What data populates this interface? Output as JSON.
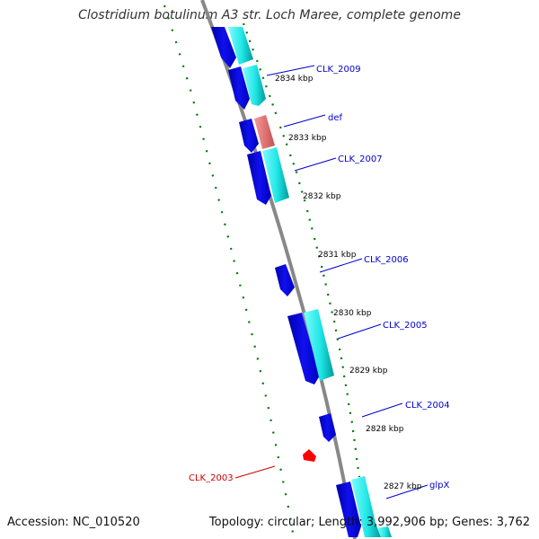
{
  "title": "Clostridium botulinum A3 str. Loch Maree, complete genome",
  "footer": {
    "accession": "Accession: NC_010520",
    "summary": "Topology: circular; Length: 3,992,906 bp; Genes: 3,762"
  },
  "colors": {
    "backbone": "#888888",
    "forward_strand": "#0000ee",
    "reverse_strand": "#00e0e0",
    "rna_gene": "#e07070",
    "highlight": "#ff0000",
    "gene_label": "#0000cc",
    "highlight_label": "#cc0000",
    "tick": "#007700",
    "tick_label": "#000000"
  },
  "diagram": {
    "kbp_ticks": [
      "2834 kbp",
      "2833 kbp",
      "2832 kbp",
      "2831 kbp",
      "2830 kbp",
      "2829 kbp",
      "2828 kbp",
      "2827 kbp"
    ],
    "gene_labels": [
      {
        "text": "CLK_2009",
        "color": "gene_label"
      },
      {
        "text": "def",
        "color": "gene_label"
      },
      {
        "text": "CLK_2007",
        "color": "gene_label"
      },
      {
        "text": "CLK_2006",
        "color": "gene_label"
      },
      {
        "text": "CLK_2005",
        "color": "gene_label"
      },
      {
        "text": "CLK_2004",
        "color": "gene_label"
      },
      {
        "text": "glpX",
        "color": "gene_label"
      },
      {
        "text": "CLK_2003",
        "color": "highlight_label"
      }
    ]
  }
}
